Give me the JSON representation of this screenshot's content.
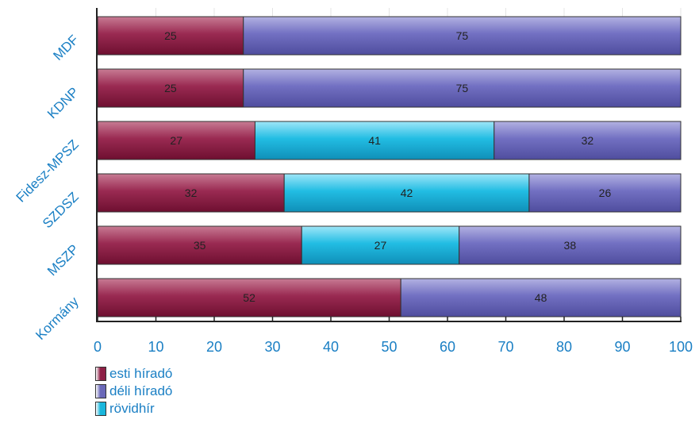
{
  "chart_data": {
    "type": "bar",
    "orientation": "horizontal",
    "stacked": true,
    "categories": [
      "MDF",
      "KDNP",
      "Fidesz-MPSZ",
      "SZDSZ",
      "MSZP",
      "Kormány"
    ],
    "series": [
      {
        "name": "esti híradó",
        "color": "#8e1f45",
        "values": [
          25,
          25,
          27,
          32,
          35,
          52
        ]
      },
      {
        "name": "déli híradó",
        "color": "#6a68b8",
        "values": [
          75,
          75,
          32,
          26,
          38,
          48
        ]
      },
      {
        "name": "rövidhír",
        "color": "#1ab6dc",
        "values": [
          0,
          0,
          41,
          42,
          27,
          0
        ]
      }
    ],
    "segment_order": [
      "esti híradó",
      "rövidhír",
      "déli híradó"
    ],
    "xlim": [
      0,
      100
    ],
    "xticks": [
      0,
      10,
      20,
      30,
      40,
      50,
      60,
      70,
      80,
      90,
      100
    ],
    "grid": false,
    "legend_position": "bottom-left",
    "label_color": "#1a7fc4"
  }
}
